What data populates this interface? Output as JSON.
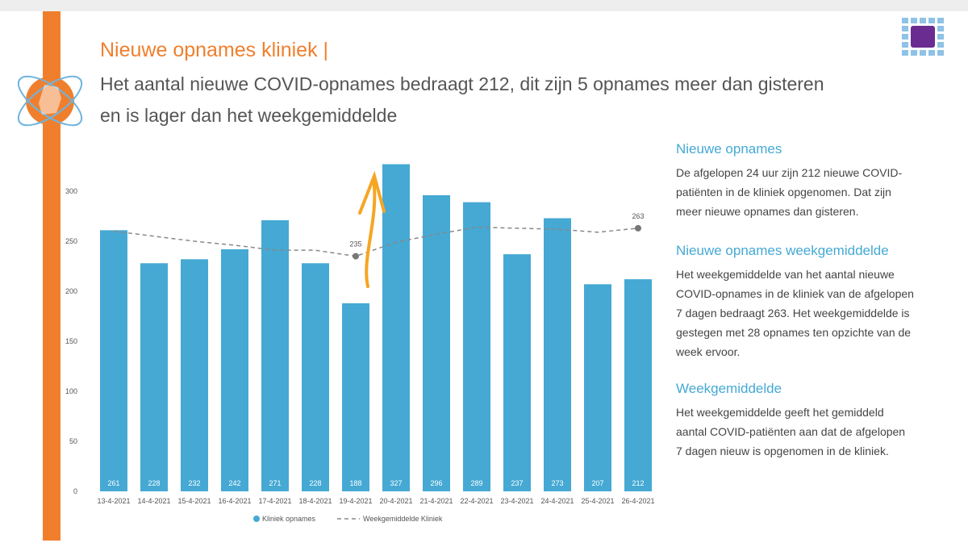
{
  "header": {
    "title": "Nieuwe opnames kliniek |",
    "subtitle_lines": [
      "Het aantal nieuwe COVID-opnames bedraagt 212, dit zijn 5 opnames meer dan gisteren",
      "en is lager dan het weekgemiddelde"
    ]
  },
  "panel": [
    {
      "heading": "Nieuwe opnames",
      "lines": [
        "De afgelopen 24 uur zijn 212 nieuwe COVID-",
        "patiënten in de kliniek opgenomen. Dat zijn",
        "meer nieuwe opnames dan gisteren."
      ]
    },
    {
      "heading": "Nieuwe opnames weekgemiddelde",
      "lines": [
        "Het weekgemiddelde van het aantal nieuwe",
        "COVID-opnames in de kliniek van de afgelopen",
        "7 dagen bedraagt 263. Het weekgemiddelde is",
        "gestegen met 28 opnames ten opzichte van de",
        "week ervoor."
      ]
    },
    {
      "heading": "Weekgemiddelde",
      "lines": [
        "Het weekgemiddelde geeft het gemiddeld",
        "aantal COVID-patiënten aan dat de afgelopen",
        "7 dagen nieuw is opgenomen in de kliniek."
      ]
    }
  ],
  "chart_data": {
    "type": "bar",
    "categories": [
      "13-4-2021",
      "14-4-2021",
      "15-4-2021",
      "16-4-2021",
      "17-4-2021",
      "18-4-2021",
      "19-4-2021",
      "20-4-2021",
      "21-4-2021",
      "22-4-2021",
      "23-4-2021",
      "24-4-2021",
      "25-4-2021",
      "26-4-2021"
    ],
    "series": [
      {
        "name": "Kliniek opnames",
        "type": "bar",
        "color": "#45a9d4",
        "values": [
          261,
          228,
          232,
          242,
          271,
          228,
          188,
          327,
          296,
          289,
          237,
          273,
          207,
          212
        ]
      },
      {
        "name": "Weekgemiddelde Kliniek",
        "type": "line",
        "color": "#888888",
        "dashed": true,
        "values": [
          260,
          255,
          250,
          246,
          241,
          241,
          235,
          249,
          257,
          264,
          263,
          262,
          259,
          263
        ],
        "labeled_points": [
          6,
          13
        ]
      }
    ],
    "ylim": [
      0,
      340
    ],
    "yticks": [
      0,
      50,
      100,
      150,
      200,
      250,
      300
    ],
    "grid": false,
    "legend": "bottom"
  }
}
